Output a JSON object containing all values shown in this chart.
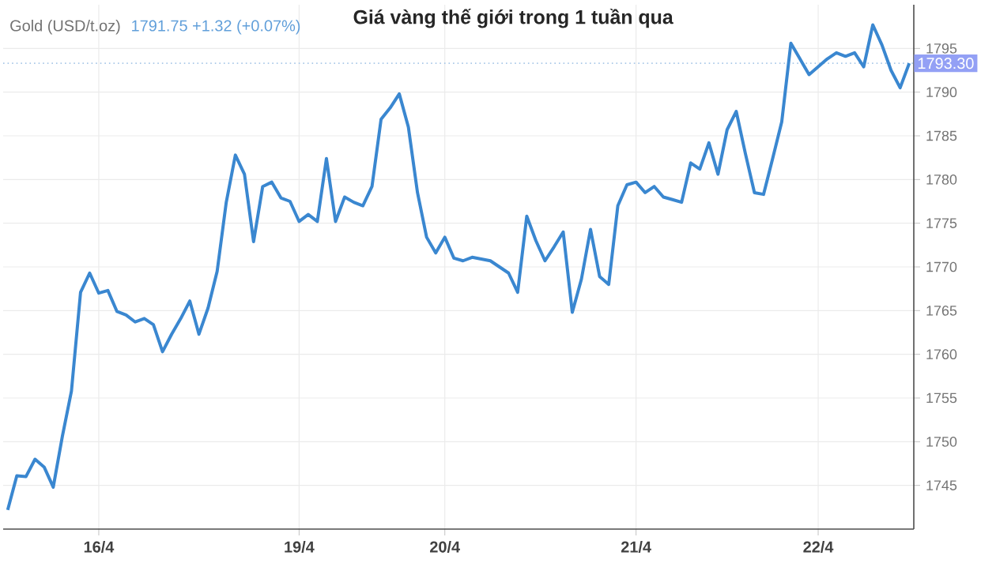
{
  "chart_data": {
    "type": "line",
    "title": "Giá vàng thế giới trong 1 tuần qua",
    "annotations": [
      "Gold (USD/t.oz)",
      "1791.75  +1.32 (+0.07%)"
    ],
    "categories": [
      null,
      null,
      null,
      null,
      null,
      null,
      null,
      null,
      null,
      null,
      "16/4",
      null,
      null,
      null,
      null,
      null,
      null,
      null,
      null,
      null,
      null,
      null,
      null,
      null,
      null,
      null,
      null,
      null,
      null,
      null,
      null,
      null,
      "19/4",
      null,
      null,
      null,
      null,
      null,
      null,
      null,
      null,
      null,
      null,
      null,
      null,
      null,
      null,
      null,
      "20/4",
      null,
      null,
      null,
      null,
      null,
      null,
      null,
      null,
      null,
      null,
      null,
      null,
      null,
      null,
      null,
      null,
      null,
      null,
      null,
      null,
      "21/4",
      null,
      null,
      null,
      null,
      null,
      null,
      null,
      null,
      null,
      null,
      null,
      null,
      null,
      null,
      null,
      null,
      null,
      null,
      null,
      "22/4",
      null,
      null,
      null,
      null,
      null,
      null,
      null,
      null,
      null,
      null
    ],
    "series": [
      {
        "color": "#3a87d0",
        "values": [
          1742.2,
          1746.1,
          1746.0,
          1748.0,
          1747.1,
          1744.8,
          1750.6,
          1755.8,
          1767.1,
          1769.3,
          1767.0,
          1767.3,
          1764.9,
          1764.5,
          1763.7,
          1764.1,
          1763.4,
          1760.3,
          1762.3,
          1764.1,
          1766.1,
          1762.3,
          1765.3,
          1769.5,
          1777.4,
          1782.8,
          1780.6,
          1772.9,
          1779.2,
          1779.7,
          1777.9,
          1777.5,
          1775.2,
          1776.0,
          1775.2,
          1782.4,
          1775.2,
          1778.0,
          1777.4,
          1777.0,
          1779.2,
          1786.9,
          1788.2,
          1789.8,
          1786.0,
          1778.5,
          1773.4,
          1771.6,
          1773.4,
          1771.0,
          1770.7,
          1771.1,
          1770.9,
          1770.7,
          1770.0,
          1769.3,
          1767.1,
          1775.8,
          1773.0,
          1770.7,
          1772.3,
          1774.0,
          1764.8,
          1768.6,
          1774.3,
          1768.9,
          1768.0,
          1777.0,
          1779.4,
          1779.7,
          1778.5,
          1779.2,
          1778.0,
          1777.7,
          1777.4,
          1781.9,
          1781.2,
          1784.2,
          1780.6,
          1785.7,
          1787.8,
          1783.0,
          1778.5,
          1778.3,
          1782.4,
          1786.6,
          1795.6,
          1793.8,
          1792.0,
          1792.9,
          1793.8,
          1794.5,
          1794.1,
          1794.5,
          1792.9,
          1797.7,
          1795.4,
          1792.5,
          1790.5,
          1793.3
        ]
      }
    ],
    "ylim": [
      1740,
      1800
    ],
    "yticks": [
      1745,
      1750,
      1755,
      1760,
      1765,
      1770,
      1775,
      1780,
      1785,
      1790,
      1795
    ],
    "ref_lines": [
      {
        "axis": "y",
        "value": 1793.3,
        "label": "1793.30",
        "color": "#a9c8e8",
        "line_style": "dotted"
      }
    ],
    "grid": true
  }
}
